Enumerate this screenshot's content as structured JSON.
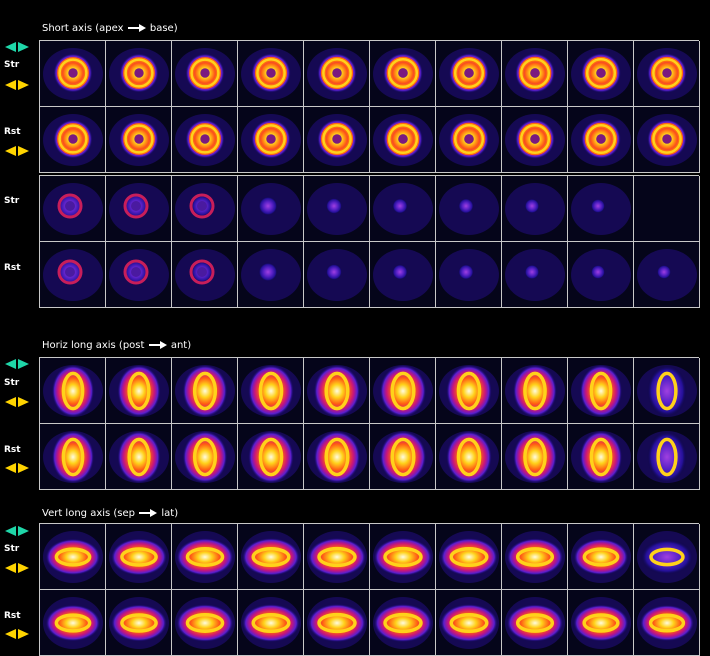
{
  "colors": {
    "nav_cyan": "#1fd6a8",
    "nav_yellow": "#ffd400",
    "grid_line": "#c8c8c8",
    "background": "#000000"
  },
  "sections": [
    {
      "id": "short-axis",
      "title_start": "Short axis (apex",
      "title_end": "base)",
      "nav_color": "nav_cyan",
      "rows": [
        {
          "label": "Str",
          "shape": "ring",
          "intensities": [
            0.85,
            0.85,
            0.85,
            0.9,
            0.9,
            0.95,
            0.95,
            0.95,
            0.95,
            0.9
          ]
        },
        {
          "label": "Rst",
          "shape": "ring",
          "intensities": [
            0.85,
            0.85,
            0.85,
            0.9,
            0.9,
            0.95,
            0.95,
            0.95,
            0.95,
            0.9
          ]
        }
      ]
    },
    {
      "id": "short-axis-cont",
      "title_start": "",
      "title_end": "",
      "nav_color": "",
      "rows": [
        {
          "label": "Str",
          "shape": "fade",
          "intensities": [
            0.55,
            0.45,
            0.35,
            0.25,
            0.15,
            0.12,
            0.12,
            0.1,
            0.08,
            0
          ]
        },
        {
          "label": "Rst",
          "shape": "fade",
          "intensities": [
            0.55,
            0.45,
            0.35,
            0.25,
            0.15,
            0.12,
            0.12,
            0.1,
            0.08,
            0.08
          ]
        }
      ]
    },
    {
      "id": "horiz-long-axis",
      "title_start": "Horiz long axis (post",
      "title_end": "ant)",
      "nav_color": "nav_cyan",
      "rows": [
        {
          "label": "Str",
          "shape": "vertical-u",
          "intensities": [
            0.75,
            0.8,
            0.9,
            0.95,
            1,
            1,
            0.95,
            0.85,
            0.75,
            0.6
          ]
        },
        {
          "label": "Rst",
          "shape": "vertical-u",
          "intensities": [
            0.75,
            0.8,
            0.9,
            0.95,
            1,
            1,
            0.95,
            0.85,
            0.75,
            0.6
          ]
        }
      ]
    },
    {
      "id": "vert-long-axis",
      "title_start": "Vert long axis (sep",
      "title_end": "lat)",
      "nav_color": "nav_cyan",
      "rows": [
        {
          "label": "Str",
          "shape": "horizontal-u",
          "intensities": [
            0.7,
            0.8,
            0.9,
            0.95,
            1,
            1,
            0.95,
            0.85,
            0.7,
            0.55
          ]
        },
        {
          "label": "Rst",
          "shape": "horizontal-u",
          "intensities": [
            0.7,
            0.8,
            0.9,
            0.95,
            1,
            1,
            0.95,
            0.85,
            0.75,
            0.65
          ]
        }
      ]
    }
  ]
}
